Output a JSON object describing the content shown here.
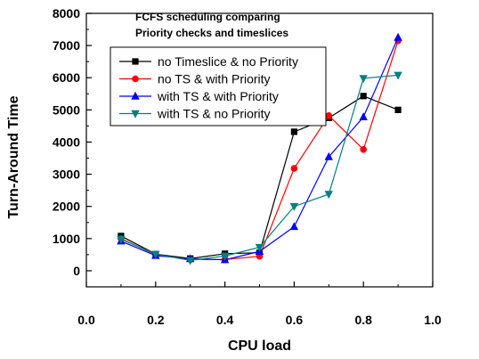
{
  "chart_data": {
    "type": "line",
    "title_lines": [
      "FCFS scheduling comparing",
      "Priority checks and timeslices"
    ],
    "xlabel": "CPU load",
    "ylabel": "Turn-Around Time",
    "xlim": [
      0.0,
      1.0
    ],
    "ylim": [
      -500,
      8000
    ],
    "x_ticks": [
      0.0,
      0.2,
      0.4,
      0.6,
      0.8,
      1.0
    ],
    "x_tick_labels": [
      "0.0",
      "0.2",
      "0.4",
      "0.6",
      "0.8",
      "1.0"
    ],
    "y_ticks": [
      0,
      1000,
      2000,
      3000,
      4000,
      5000,
      6000,
      7000,
      8000
    ],
    "y_tick_labels": [
      "0",
      "1000",
      "2000",
      "3000",
      "4000",
      "5000",
      "6000",
      "7000",
      "8000"
    ],
    "grid": false,
    "legend_position": "top-inside",
    "x": [
      0.1,
      0.2,
      0.3,
      0.4,
      0.5,
      0.6,
      0.7,
      0.8,
      0.9
    ],
    "series": [
      {
        "name": "no Timeslice & no Priority",
        "color": "#000000",
        "marker": "square",
        "values": [
          1080,
          520,
          380,
          530,
          560,
          4320,
          4750,
          5430,
          5000
        ]
      },
      {
        "name": "no TS & with Priority",
        "color": "#ff0000",
        "marker": "circle",
        "values": [
          1000,
          500,
          350,
          350,
          450,
          3180,
          4820,
          3770,
          7150
        ]
      },
      {
        "name": "with TS & with Priority",
        "color": "#0000ff",
        "marker": "triangle-up",
        "values": [
          920,
          470,
          370,
          340,
          600,
          1370,
          3540,
          4780,
          7250
        ]
      },
      {
        "name": "with TS & no Priority",
        "color": "#008080",
        "marker": "triangle-down",
        "values": [
          980,
          520,
          320,
          460,
          730,
          2000,
          2380,
          5980,
          6080
        ]
      }
    ]
  }
}
